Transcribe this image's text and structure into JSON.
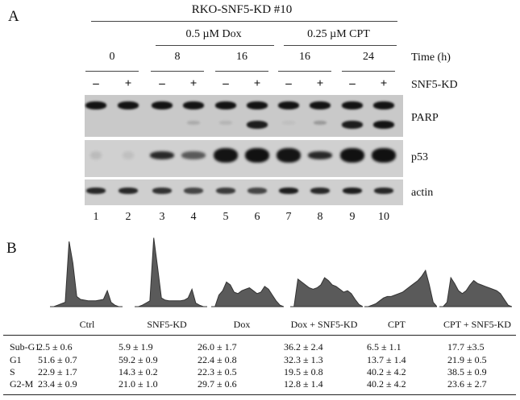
{
  "panelA": {
    "letter": "A",
    "cell_line": "RKO-SNF5-KD #10",
    "dox_label": "0.5 µM Dox",
    "cpt_label": "0.25 µM CPT",
    "time_label": "Time (h)",
    "times": [
      "0",
      "8",
      "16",
      "16",
      "24"
    ],
    "snf5_label": "SNF5-KD",
    "signs": [
      "–",
      "+",
      "–",
      "+",
      "–",
      "+",
      "–",
      "+",
      "–",
      "+"
    ],
    "blot_labels": [
      "PARP",
      "p53",
      "actin"
    ],
    "lanes": [
      "1",
      "2",
      "3",
      "4",
      "5",
      "6",
      "7",
      "8",
      "9",
      "10"
    ]
  },
  "panelB": {
    "letter": "B",
    "conditions": [
      "Ctrl",
      "SNF5-KD",
      "Dox",
      "Dox + SNF5-KD",
      "CPT",
      "CPT + SNF5-KD"
    ],
    "row_labels": [
      "Sub-G1",
      "G1",
      "S",
      "G2-M"
    ],
    "rows": [
      [
        "2.5 ± 0.6",
        "5.9 ± 1.9",
        "26.0 ± 1.7",
        "36.2 ± 2.4",
        "6.5 ± 1.1",
        "17.7 ±3.5"
      ],
      [
        "51.6 ± 0.7",
        "59.2 ± 0.9",
        "22.4 ± 0.8",
        "32.3 ± 1.3",
        "13.7 ± 1.4",
        "21.9 ± 0.5"
      ],
      [
        "22.9 ± 1.7",
        "14.3 ± 0.2",
        "22.3 ± 0.5",
        "19.5 ± 0.8",
        "40.2 ± 4.2",
        "38.5 ± 0.9"
      ],
      [
        "23.4 ± 0.9",
        "21.0 ± 1.0",
        "29.7 ± 0.6",
        "12.8 ± 1.4",
        "40.2 ± 4.2",
        "23.6 ± 2.7"
      ]
    ]
  }
}
